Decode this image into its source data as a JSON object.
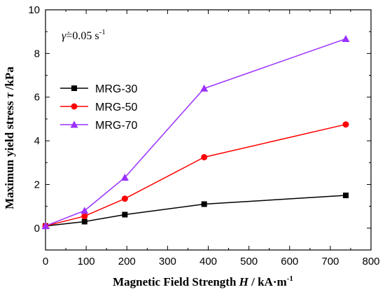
{
  "chart_data": {
    "type": "line",
    "xlabel": "Magnetic Field Strength H / kA·m⁻¹",
    "xlabel_parts": {
      "before": "Magnetic Field Strength ",
      "italic": "H",
      "after": " / kA·m",
      "sup": "-1"
    },
    "ylabel": "Maximun yield stress τ /kPa",
    "ylabel_parts": {
      "before": "Maximun yield stress ",
      "italic": "τ",
      "after": " /kPa"
    },
    "annotation": {
      "symbol": "γ̇",
      "text": "=0.05 s",
      "sup": "-1"
    },
    "xlim": [
      0,
      800
    ],
    "ylim": [
      -1,
      10
    ],
    "xticks": [
      0,
      100,
      200,
      300,
      400,
      500,
      600,
      700,
      800
    ],
    "yticks": [
      0,
      2,
      4,
      6,
      8,
      10
    ],
    "grid": false,
    "legend_position": "left",
    "series": [
      {
        "name": "MRG-30",
        "color": "#000000",
        "marker": "square",
        "x": [
          0,
          96,
          195,
          390,
          738
        ],
        "y": [
          0.1,
          0.3,
          0.62,
          1.1,
          1.5
        ]
      },
      {
        "name": "MRG-50",
        "color": "#ff0000",
        "marker": "circle",
        "x": [
          0,
          96,
          195,
          390,
          738
        ],
        "y": [
          0.1,
          0.55,
          1.35,
          3.25,
          4.75
        ]
      },
      {
        "name": "MRG-70",
        "color": "#9b30ff",
        "marker": "triangle",
        "x": [
          0,
          96,
          195,
          390,
          738
        ],
        "y": [
          0.1,
          0.8,
          2.32,
          6.4,
          8.67
        ]
      }
    ]
  }
}
